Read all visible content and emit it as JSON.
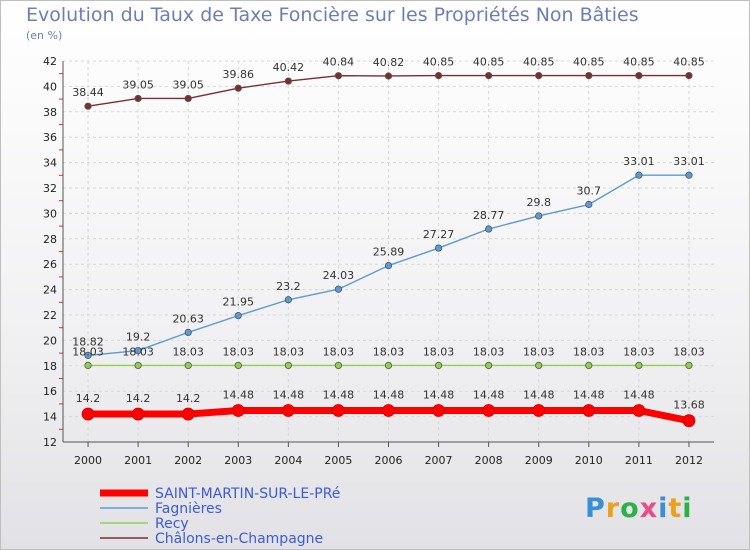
{
  "chart_data": {
    "type": "line",
    "title": "Evolution du Taux de Taxe Foncière sur les Propriétés Non Bâties",
    "unit_label": "(en %)",
    "xlabel": "",
    "ylabel": "",
    "x": [
      2000,
      2001,
      2002,
      2003,
      2004,
      2005,
      2006,
      2007,
      2008,
      2009,
      2010,
      2011,
      2012
    ],
    "ylim": [
      12,
      42
    ],
    "yticks": [
      12,
      14,
      16,
      18,
      20,
      22,
      24,
      26,
      28,
      30,
      32,
      34,
      36,
      38,
      40,
      42
    ],
    "grid": true,
    "legend_position": "bottom-left",
    "series": [
      {
        "name": "SAINT-MARTIN-SUR-LE-PRé",
        "color": "#ff0000",
        "values": [
          14.2,
          14.2,
          14.2,
          14.48,
          14.48,
          14.48,
          14.48,
          14.48,
          14.48,
          14.48,
          14.48,
          14.48,
          13.68
        ],
        "labels": [
          "14.2",
          "14.2",
          "14.2",
          "14.48",
          "14.48",
          "14.48",
          "14.48",
          "14.48",
          "14.48",
          "14.48",
          "14.48",
          "14.48",
          "13.68"
        ]
      },
      {
        "name": "Fagnières",
        "color": "#5b9bd5",
        "values": [
          18.82,
          19.2,
          20.63,
          21.95,
          23.2,
          24.03,
          25.89,
          27.27,
          28.77,
          29.8,
          30.7,
          33.01,
          33.01
        ],
        "labels": [
          "18.82",
          "19.2",
          "20.63",
          "21.95",
          "23.2",
          "24.03",
          "25.89",
          "27.27",
          "28.77",
          "29.8",
          "30.7",
          "33.01",
          "33.01"
        ]
      },
      {
        "name": "Recy",
        "color": "#8fd14f",
        "values": [
          18.03,
          18.03,
          18.03,
          18.03,
          18.03,
          18.03,
          18.03,
          18.03,
          18.03,
          18.03,
          18.03,
          18.03,
          18.03
        ],
        "labels": [
          "18.03",
          "18.03",
          "18.03",
          "18.03",
          "18.03",
          "18.03",
          "18.03",
          "18.03",
          "18.03",
          "18.03",
          "18.03",
          "18.03",
          "18.03"
        ]
      },
      {
        "name": "Châlons-en-Champagne",
        "color": "#7a2e2e",
        "values": [
          38.44,
          39.05,
          39.05,
          39.86,
          40.42,
          40.84,
          40.82,
          40.85,
          40.85,
          40.85,
          40.85,
          40.85,
          40.85
        ],
        "labels": [
          "38.44",
          "39.05",
          "39.05",
          "39.86",
          "40.42",
          "40.84",
          "40.82",
          "40.85",
          "40.85",
          "40.85",
          "40.85",
          "40.85",
          "40.85"
        ]
      }
    ]
  },
  "logo": {
    "text": "Proxiti",
    "letter_colors": [
      "#3a8fd9",
      "#e8a21e",
      "#2bb14a",
      "#e84c8a",
      "#3a8fd9",
      "#e8a21e",
      "#2bb14a"
    ]
  }
}
